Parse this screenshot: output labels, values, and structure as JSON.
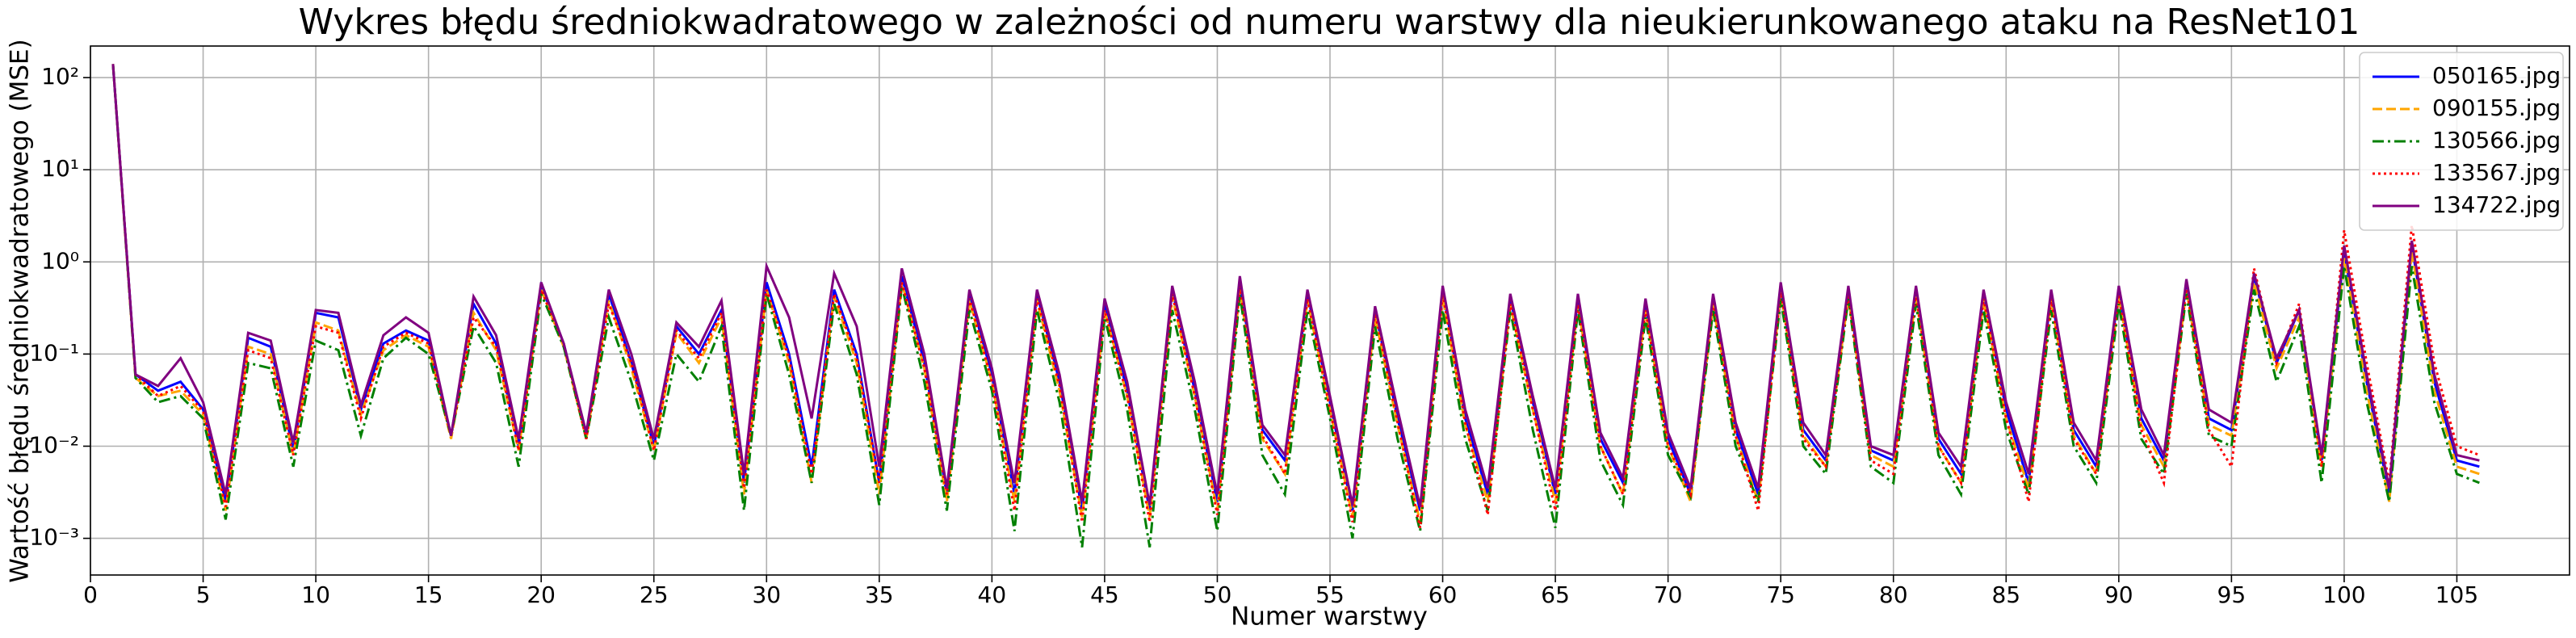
{
  "chart_data": {
    "type": "line",
    "title": "Wykres błędu średniokwadratowego w zależności od numeru warstwy dla nieukierunkowanego ataku na ResNet101",
    "xlabel": "Numer warstwy",
    "ylabel": "Wartość błędu średniokwadratowego (MSE)",
    "yscale": "log",
    "grid": true,
    "legend": "upper right",
    "xlim": [
      0,
      110
    ],
    "ylim": [
      0.0004,
      220
    ],
    "xticks": [
      0,
      5,
      10,
      15,
      20,
      25,
      30,
      35,
      40,
      45,
      50,
      55,
      60,
      65,
      70,
      75,
      80,
      85,
      90,
      95,
      100,
      105
    ],
    "yticks": [
      {
        "value": 0.001,
        "label": "10⁻³"
      },
      {
        "value": 0.01,
        "label": "10⁻²"
      },
      {
        "value": 0.1,
        "label": "10⁻¹"
      },
      {
        "value": 1,
        "label": "10⁰"
      },
      {
        "value": 10,
        "label": "10¹"
      },
      {
        "value": 100,
        "label": "10²"
      }
    ],
    "x": [
      1,
      2,
      3,
      4,
      5,
      6,
      7,
      8,
      9,
      10,
      11,
      12,
      13,
      14,
      15,
      16,
      17,
      18,
      19,
      20,
      21,
      22,
      23,
      24,
      25,
      26,
      27,
      28,
      29,
      30,
      31,
      32,
      33,
      34,
      35,
      36,
      37,
      38,
      39,
      40,
      41,
      42,
      43,
      44,
      45,
      46,
      47,
      48,
      49,
      50,
      51,
      52,
      53,
      54,
      55,
      56,
      57,
      58,
      59,
      60,
      61,
      62,
      63,
      64,
      65,
      66,
      67,
      68,
      69,
      70,
      71,
      72,
      73,
      74,
      75,
      76,
      77,
      78,
      79,
      80,
      81,
      82,
      83,
      84,
      85,
      86,
      87,
      88,
      89,
      90,
      91,
      92,
      93,
      94,
      95,
      96,
      97,
      98,
      99,
      100,
      101,
      102,
      103,
      104,
      105,
      106
    ],
    "series": [
      {
        "name": "050165.jpg",
        "color": "#0000ff",
        "linestyle": "solid",
        "values": [
          140,
          0.06,
          0.04,
          0.05,
          0.025,
          0.0025,
          0.15,
          0.12,
          0.009,
          0.28,
          0.25,
          0.025,
          0.13,
          0.18,
          0.14,
          0.013,
          0.35,
          0.13,
          0.01,
          0.55,
          0.13,
          0.013,
          0.45,
          0.08,
          0.01,
          0.2,
          0.1,
          0.3,
          0.004,
          0.6,
          0.1,
          0.006,
          0.5,
          0.1,
          0.004,
          0.7,
          0.08,
          0.003,
          0.45,
          0.06,
          0.003,
          0.45,
          0.05,
          0.002,
          0.35,
          0.04,
          0.002,
          0.5,
          0.04,
          0.0025,
          0.6,
          0.015,
          0.007,
          0.45,
          0.03,
          0.002,
          0.3,
          0.02,
          0.002,
          0.5,
          0.02,
          0.003,
          0.4,
          0.03,
          0.003,
          0.4,
          0.012,
          0.004,
          0.35,
          0.012,
          0.003,
          0.4,
          0.015,
          0.003,
          0.55,
          0.015,
          0.007,
          0.5,
          0.009,
          0.007,
          0.5,
          0.012,
          0.005,
          0.45,
          0.025,
          0.004,
          0.45,
          0.015,
          0.006,
          0.5,
          0.02,
          0.007,
          0.6,
          0.02,
          0.015,
          0.7,
          0.08,
          0.3,
          0.007,
          1.3,
          0.05,
          0.003,
          1.5,
          0.05,
          0.007,
          0.006
        ]
      },
      {
        "name": "090155.jpg",
        "color": "#ffa500",
        "linestyle": "dashed",
        "values": [
          140,
          0.055,
          0.035,
          0.04,
          0.022,
          0.002,
          0.12,
          0.1,
          0.008,
          0.22,
          0.18,
          0.022,
          0.11,
          0.16,
          0.12,
          0.012,
          0.28,
          0.11,
          0.009,
          0.5,
          0.12,
          0.012,
          0.38,
          0.07,
          0.009,
          0.17,
          0.08,
          0.25,
          0.003,
          0.5,
          0.08,
          0.004,
          0.42,
          0.08,
          0.003,
          0.6,
          0.07,
          0.0025,
          0.38,
          0.05,
          0.0025,
          0.38,
          0.04,
          0.0017,
          0.3,
          0.035,
          0.0017,
          0.42,
          0.035,
          0.002,
          0.5,
          0.012,
          0.005,
          0.38,
          0.025,
          0.0017,
          0.25,
          0.017,
          0.0015,
          0.42,
          0.017,
          0.0025,
          0.34,
          0.025,
          0.0025,
          0.34,
          0.01,
          0.003,
          0.3,
          0.01,
          0.0025,
          0.34,
          0.013,
          0.0025,
          0.47,
          0.013,
          0.006,
          0.42,
          0.008,
          0.006,
          0.42,
          0.01,
          0.004,
          0.38,
          0.02,
          0.0035,
          0.38,
          0.013,
          0.005,
          0.42,
          0.017,
          0.006,
          0.5,
          0.017,
          0.013,
          0.6,
          0.07,
          0.25,
          0.006,
          1.1,
          0.04,
          0.0025,
          1.3,
          0.04,
          0.006,
          0.005
        ]
      },
      {
        "name": "130566.jpg",
        "color": "#008000",
        "linestyle": "dashdot",
        "values": [
          140,
          0.055,
          0.03,
          0.035,
          0.02,
          0.0016,
          0.08,
          0.07,
          0.006,
          0.14,
          0.11,
          0.013,
          0.09,
          0.15,
          0.1,
          0.013,
          0.2,
          0.08,
          0.006,
          0.45,
          0.12,
          0.012,
          0.25,
          0.05,
          0.007,
          0.1,
          0.05,
          0.2,
          0.002,
          0.45,
          0.06,
          0.004,
          0.35,
          0.06,
          0.0023,
          0.55,
          0.05,
          0.002,
          0.3,
          0.04,
          0.0012,
          0.3,
          0.03,
          0.0008,
          0.25,
          0.025,
          0.0008,
          0.3,
          0.025,
          0.0012,
          0.45,
          0.008,
          0.003,
          0.3,
          0.02,
          0.001,
          0.2,
          0.012,
          0.0012,
          0.3,
          0.012,
          0.002,
          0.3,
          0.015,
          0.0013,
          0.3,
          0.007,
          0.0023,
          0.25,
          0.008,
          0.0028,
          0.3,
          0.01,
          0.0025,
          0.4,
          0.01,
          0.005,
          0.4,
          0.006,
          0.004,
          0.35,
          0.008,
          0.003,
          0.3,
          0.015,
          0.003,
          0.3,
          0.01,
          0.004,
          0.35,
          0.012,
          0.005,
          0.45,
          0.013,
          0.01,
          0.5,
          0.05,
          0.2,
          0.004,
          0.9,
          0.03,
          0.0025,
          0.9,
          0.03,
          0.005,
          0.004
        ]
      },
      {
        "name": "133567.jpg",
        "color": "#ff0000",
        "linestyle": "dotted",
        "values": [
          140,
          0.06,
          0.035,
          0.045,
          0.024,
          0.0022,
          0.11,
          0.09,
          0.008,
          0.2,
          0.17,
          0.02,
          0.12,
          0.17,
          0.13,
          0.013,
          0.25,
          0.12,
          0.009,
          0.5,
          0.13,
          0.012,
          0.35,
          0.08,
          0.009,
          0.18,
          0.09,
          0.28,
          0.0035,
          0.5,
          0.09,
          0.005,
          0.45,
          0.09,
          0.004,
          0.6,
          0.07,
          0.003,
          0.4,
          0.05,
          0.002,
          0.4,
          0.045,
          0.0015,
          0.3,
          0.035,
          0.0015,
          0.45,
          0.035,
          0.0018,
          0.55,
          0.013,
          0.005,
          0.4,
          0.025,
          0.0015,
          0.28,
          0.018,
          0.0013,
          0.45,
          0.018,
          0.0018,
          0.35,
          0.025,
          0.002,
          0.35,
          0.01,
          0.003,
          0.3,
          0.01,
          0.003,
          0.38,
          0.013,
          0.002,
          0.5,
          0.012,
          0.006,
          0.45,
          0.007,
          0.005,
          0.45,
          0.01,
          0.004,
          0.4,
          0.02,
          0.0025,
          0.4,
          0.012,
          0.005,
          0.45,
          0.015,
          0.004,
          0.55,
          0.015,
          0.006,
          0.85,
          0.08,
          0.35,
          0.006,
          2.2,
          0.08,
          0.004,
          2.5,
          0.08,
          0.01,
          0.008
        ]
      },
      {
        "name": "134722.jpg",
        "color": "#800080",
        "linestyle": "solid",
        "values": [
          140,
          0.06,
          0.045,
          0.09,
          0.03,
          0.003,
          0.17,
          0.14,
          0.011,
          0.3,
          0.28,
          0.028,
          0.16,
          0.25,
          0.17,
          0.013,
          0.42,
          0.16,
          0.012,
          0.6,
          0.13,
          0.014,
          0.5,
          0.1,
          0.012,
          0.22,
          0.12,
          0.38,
          0.005,
          0.9,
          0.25,
          0.02,
          0.75,
          0.2,
          0.006,
          0.85,
          0.1,
          0.0035,
          0.5,
          0.07,
          0.004,
          0.5,
          0.06,
          0.0025,
          0.4,
          0.05,
          0.0023,
          0.55,
          0.05,
          0.003,
          0.7,
          0.017,
          0.008,
          0.5,
          0.035,
          0.0023,
          0.33,
          0.025,
          0.0022,
          0.55,
          0.025,
          0.0035,
          0.45,
          0.035,
          0.0035,
          0.45,
          0.014,
          0.0045,
          0.4,
          0.014,
          0.0035,
          0.45,
          0.018,
          0.0035,
          0.6,
          0.018,
          0.008,
          0.55,
          0.01,
          0.008,
          0.55,
          0.014,
          0.006,
          0.5,
          0.03,
          0.005,
          0.5,
          0.018,
          0.007,
          0.55,
          0.025,
          0.008,
          0.65,
          0.025,
          0.018,
          0.75,
          0.09,
          0.3,
          0.008,
          1.5,
          0.06,
          0.0035,
          1.7,
          0.06,
          0.008,
          0.007
        ]
      }
    ]
  }
}
